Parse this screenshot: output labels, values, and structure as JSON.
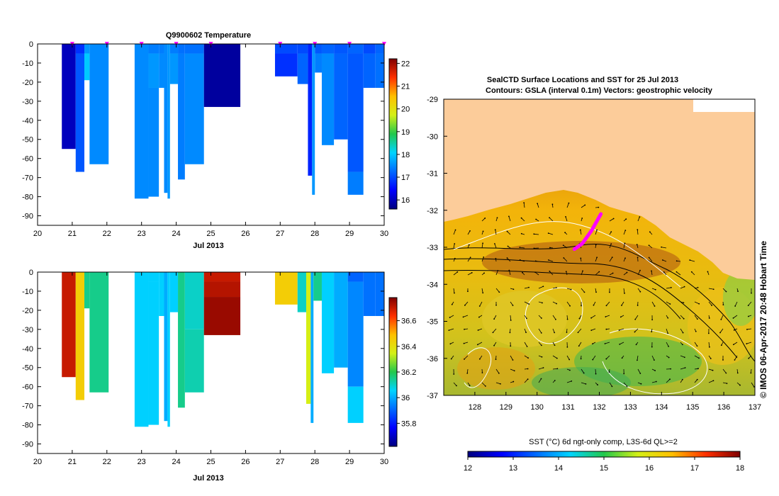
{
  "chart_data": [
    {
      "type": "heatmap",
      "title": "Q9900602  Temperature",
      "xlabel": "Jul 2013",
      "xlim": [
        20,
        30
      ],
      "ylim": [
        -95,
        0
      ],
      "x_ticks": [
        "20",
        "21",
        "22",
        "23",
        "24",
        "25",
        "26",
        "27",
        "28",
        "29",
        "30"
      ],
      "y_ticks": [
        "0",
        "-10",
        "-20",
        "-30",
        "-40",
        "-50",
        "-60",
        "-70",
        "-80",
        "-90"
      ],
      "colorbar": {
        "min": 15.6,
        "max": 22.2,
        "ticks": [
          "16",
          "17",
          "18",
          "19",
          "20",
          "21",
          "22"
        ]
      },
      "profile_markers_x": [
        21.0,
        22.0,
        23.0,
        24.0,
        25.0,
        27.0,
        28.0,
        29.0,
        30.0
      ],
      "profiles": [
        {
          "x0": 20.7,
          "x1": 21.1,
          "segments": [
            [
              0,
              -55,
              16.0
            ]
          ]
        },
        {
          "x0": 21.1,
          "x1": 21.35,
          "segments": [
            [
              0,
              -5,
              16.8
            ],
            [
              -5,
              -67,
              17.1
            ]
          ]
        },
        {
          "x0": 21.35,
          "x1": 21.5,
          "segments": [
            [
              0,
              -5,
              17.6
            ],
            [
              -5,
              -19,
              18.0
            ]
          ]
        },
        {
          "x0": 21.5,
          "x1": 22.05,
          "segments": [
            [
              0,
              -63,
              17.5
            ]
          ]
        },
        {
          "x0": 22.8,
          "x1": 23.2,
          "segments": [
            [
              0,
              -81,
              17.5
            ]
          ]
        },
        {
          "x0": 23.2,
          "x1": 23.5,
          "segments": [
            [
              0,
              -5,
              17.4
            ],
            [
              -5,
              -23,
              17.6
            ],
            [
              -23,
              -80,
              17.5
            ]
          ]
        },
        {
          "x0": 23.5,
          "x1": 23.65,
          "segments": [
            [
              0,
              -5,
              17.4
            ],
            [
              -5,
              -23,
              17.5
            ]
          ]
        },
        {
          "x0": 23.65,
          "x1": 23.75,
          "segments": [
            [
              0,
              -78,
              17.5
            ]
          ]
        },
        {
          "x0": 23.75,
          "x1": 23.82,
          "segments": [
            [
              0,
              -81,
              17.6
            ]
          ]
        },
        {
          "x0": 23.82,
          "x1": 24.05,
          "segments": [
            [
              0,
              -5,
              17.4
            ],
            [
              -5,
              -21,
              17.6
            ]
          ]
        },
        {
          "x0": 24.05,
          "x1": 24.25,
          "segments": [
            [
              0,
              -5,
              17.3
            ],
            [
              -5,
              -71,
              17.4
            ]
          ]
        },
        {
          "x0": 24.25,
          "x1": 24.8,
          "segments": [
            [
              0,
              -5,
              17.3
            ],
            [
              -5,
              -63,
              17.5
            ]
          ]
        },
        {
          "x0": 24.8,
          "x1": 25.85,
          "segments": [
            [
              0,
              -33,
              15.8
            ]
          ]
        },
        {
          "x0": 26.85,
          "x1": 27.5,
          "segments": [
            [
              0,
              -5,
              17.0
            ],
            [
              -5,
              -17,
              16.8
            ]
          ]
        },
        {
          "x0": 27.5,
          "x1": 27.8,
          "segments": [
            [
              0,
              -5,
              17.0
            ],
            [
              -5,
              -21,
              17.2
            ]
          ]
        },
        {
          "x0": 27.8,
          "x1": 27.92,
          "segments": [
            [
              0,
              -69,
              16.7
            ]
          ]
        },
        {
          "x0": 27.92,
          "x1": 28.0,
          "segments": [
            [
              0,
              -79,
              17.6
            ]
          ]
        },
        {
          "x0": 28.0,
          "x1": 28.2,
          "segments": [
            [
              0,
              -5,
              17.1
            ],
            [
              -5,
              -15,
              17.4
            ]
          ]
        },
        {
          "x0": 28.2,
          "x1": 28.55,
          "segments": [
            [
              0,
              -5,
              17.2
            ],
            [
              -5,
              -53,
              17.5
            ]
          ]
        },
        {
          "x0": 28.55,
          "x1": 28.95,
          "segments": [
            [
              0,
              -5,
              17.1
            ],
            [
              -5,
              -50,
              17.2
            ]
          ]
        },
        {
          "x0": 28.95,
          "x1": 29.4,
          "segments": [
            [
              0,
              -5,
              17.2
            ],
            [
              -5,
              -67,
              17.1
            ],
            [
              -67,
              -79,
              17.4
            ]
          ]
        },
        {
          "x0": 29.4,
          "x1": 29.75,
          "segments": [
            [
              0,
              -5,
              17.0
            ],
            [
              -5,
              -23,
              17.2
            ]
          ]
        },
        {
          "x0": 29.75,
          "x1": 30.15,
          "segments": [
            [
              0,
              -5,
              17.2
            ],
            [
              -5,
              -23,
              17.3
            ]
          ]
        }
      ]
    },
    {
      "type": "heatmap",
      "title": "",
      "xlabel": "Jul 2013",
      "xlim": [
        20,
        30
      ],
      "ylim": [
        -95,
        0
      ],
      "x_ticks": [
        "20",
        "21",
        "22",
        "23",
        "24",
        "25",
        "26",
        "27",
        "28",
        "29",
        "30"
      ],
      "y_ticks": [
        "0",
        "-10",
        "-20",
        "-30",
        "-40",
        "-50",
        "-60",
        "-70",
        "-80",
        "-90"
      ],
      "colorbar": {
        "min": 35.62,
        "max": 36.78,
        "ticks": [
          "35.8",
          "36",
          "36.2",
          "36.4",
          "36.6"
        ]
      },
      "profiles": [
        {
          "x0": 20.7,
          "x1": 21.1,
          "segments": [
            [
              0,
              -55,
              36.7
            ]
          ]
        },
        {
          "x0": 21.1,
          "x1": 21.35,
          "segments": [
            [
              0,
              -67,
              36.45
            ]
          ]
        },
        {
          "x0": 21.35,
          "x1": 21.5,
          "segments": [
            [
              0,
              -19,
              36.15
            ]
          ]
        },
        {
          "x0": 21.5,
          "x1": 22.05,
          "segments": [
            [
              0,
              -63,
              36.15
            ]
          ]
        },
        {
          "x0": 22.8,
          "x1": 23.2,
          "segments": [
            [
              0,
              -81,
              36.05
            ]
          ]
        },
        {
          "x0": 23.2,
          "x1": 23.5,
          "segments": [
            [
              0,
              -5,
              36.05
            ],
            [
              -5,
              -80,
              36.05
            ]
          ]
        },
        {
          "x0": 23.5,
          "x1": 23.65,
          "segments": [
            [
              0,
              -23,
              36.05
            ]
          ]
        },
        {
          "x0": 23.65,
          "x1": 23.75,
          "segments": [
            [
              0,
              -78,
              36.0
            ]
          ]
        },
        {
          "x0": 23.75,
          "x1": 23.82,
          "segments": [
            [
              0,
              -81,
              36.05
            ]
          ]
        },
        {
          "x0": 23.82,
          "x1": 24.05,
          "segments": [
            [
              0,
              -21,
              36.05
            ]
          ]
        },
        {
          "x0": 24.05,
          "x1": 24.25,
          "segments": [
            [
              0,
              -71,
              36.15
            ]
          ]
        },
        {
          "x0": 24.25,
          "x1": 24.8,
          "segments": [
            [
              0,
              -30,
              36.1
            ],
            [
              -30,
              -63,
              36.12
            ]
          ]
        },
        {
          "x0": 24.8,
          "x1": 25.85,
          "segments": [
            [
              0,
              -5,
              36.7
            ],
            [
              -5,
              -13,
              36.72
            ],
            [
              -13,
              -33,
              36.75
            ]
          ]
        },
        {
          "x0": 26.85,
          "x1": 27.5,
          "segments": [
            [
              0,
              -17,
              36.45
            ]
          ]
        },
        {
          "x0": 27.5,
          "x1": 27.75,
          "segments": [
            [
              0,
              -21,
              36.1
            ]
          ]
        },
        {
          "x0": 27.75,
          "x1": 27.88,
          "segments": [
            [
              0,
              -69,
              36.35
            ]
          ]
        },
        {
          "x0": 27.88,
          "x1": 27.96,
          "segments": [
            [
              0,
              -79,
              36.0
            ]
          ]
        },
        {
          "x0": 27.96,
          "x1": 28.2,
          "segments": [
            [
              0,
              -15,
              36.15
            ]
          ]
        },
        {
          "x0": 28.2,
          "x1": 28.55,
          "segments": [
            [
              0,
              -53,
              36.05
            ]
          ]
        },
        {
          "x0": 28.55,
          "x1": 28.95,
          "segments": [
            [
              0,
              -50,
              36.0
            ]
          ]
        },
        {
          "x0": 28.95,
          "x1": 29.4,
          "segments": [
            [
              0,
              -5,
              35.9
            ],
            [
              -5,
              -60,
              35.95
            ],
            [
              -60,
              -79,
              36.05
            ]
          ]
        },
        {
          "x0": 29.4,
          "x1": 29.75,
          "segments": [
            [
              0,
              -23,
              35.92
            ]
          ]
        },
        {
          "x0": 29.75,
          "x1": 30.15,
          "segments": [
            [
              0,
              -23,
              35.92
            ]
          ]
        }
      ]
    },
    {
      "type": "heatmap",
      "title_line1": "SealCTD Surface Locations and SST for 25 Jul 2013",
      "title_line2": "Contours: GSLA (interval 0.1m) Vectors: geostrophic velocity",
      "xlim": [
        127,
        137
      ],
      "ylim": [
        -37,
        -29
      ],
      "x_ticks": [
        "128",
        "129",
        "130",
        "131",
        "132",
        "133",
        "134",
        "135",
        "136",
        "137"
      ],
      "y_ticks": [
        "-29",
        "-30",
        "-31",
        "-32",
        "-33",
        "-34",
        "-35",
        "-36",
        "-37"
      ],
      "colorbar_label": "SST (°C) 6d ngt-only comp, L3S-6d QL>=2",
      "colorbar": {
        "min": 12,
        "max": 18,
        "ticks": [
          "12",
          "13",
          "14",
          "15",
          "16",
          "17",
          "18"
        ]
      },
      "track": [
        [
          131.2,
          -33.05
        ],
        [
          131.45,
          -32.9
        ],
        [
          131.75,
          -32.55
        ],
        [
          132.05,
          -32.1
        ]
      ],
      "watermark": "© IMOS 06-Apr-2017 20:48 Hobart Time"
    }
  ]
}
